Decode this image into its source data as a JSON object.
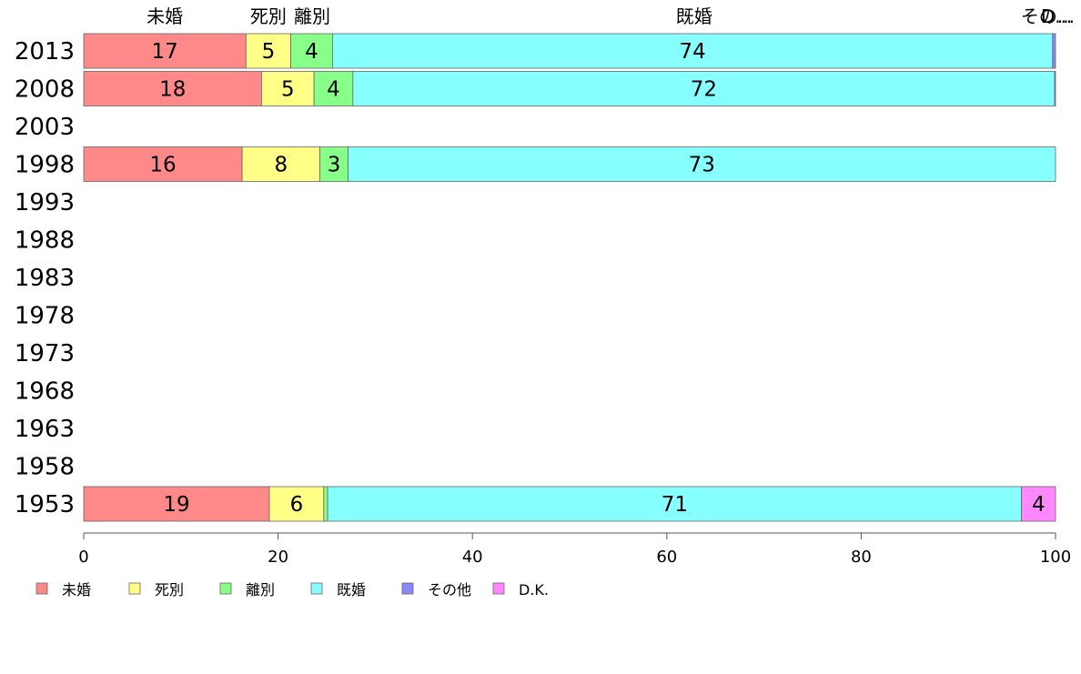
{
  "colors": {
    "未婚": "#ff8888",
    "死別": "#ffff88",
    "離別": "#88ff88",
    "既婚": "#88ffff",
    "その他": "#8888ff",
    "D.K.": "#ff88ff"
  },
  "chart_data": {
    "type": "bar",
    "orientation": "horizontal",
    "stacked": true,
    "categories": [
      "2013",
      "2008",
      "2003",
      "1998",
      "1993",
      "1988",
      "1983",
      "1978",
      "1973",
      "1968",
      "1963",
      "1958",
      "1953"
    ],
    "series": [
      {
        "name": "未婚",
        "values": [
          16.7,
          18.3,
          null,
          16.3,
          null,
          null,
          null,
          null,
          null,
          null,
          null,
          null,
          19.1
        ]
      },
      {
        "name": "死別",
        "values": [
          4.6,
          5.4,
          null,
          8.0,
          null,
          null,
          null,
          null,
          null,
          null,
          null,
          null,
          5.6
        ]
      },
      {
        "name": "離別",
        "values": [
          4.3,
          4.0,
          null,
          2.9,
          null,
          null,
          null,
          null,
          null,
          null,
          null,
          null,
          0.4
        ]
      },
      {
        "name": "既婚",
        "values": [
          74.1,
          72.2,
          null,
          72.8,
          null,
          null,
          null,
          null,
          null,
          null,
          null,
          null,
          71.4
        ]
      },
      {
        "name": "その他",
        "values": [
          0.3,
          0.1,
          null,
          0.0,
          null,
          null,
          null,
          null,
          null,
          null,
          null,
          null,
          0.0
        ]
      },
      {
        "name": "D.K.",
        "values": [
          0.0,
          0.0,
          null,
          0.0,
          null,
          null,
          null,
          null,
          null,
          null,
          null,
          null,
          3.5
        ]
      }
    ],
    "bar_labels": [
      [
        "17",
        "5",
        "4",
        "74",
        "",
        ""
      ],
      [
        "18",
        "5",
        "4",
        "72",
        "",
        ""
      ],
      [
        "",
        "",
        "",
        "",
        "",
        ""
      ],
      [
        "16",
        "8",
        "3",
        "73",
        "",
        ""
      ],
      [
        "",
        "",
        "",
        "",
        "",
        ""
      ],
      [
        "",
        "",
        "",
        "",
        "",
        ""
      ],
      [
        "",
        "",
        "",
        "",
        "",
        ""
      ],
      [
        "",
        "",
        "",
        "",
        "",
        ""
      ],
      [
        "",
        "",
        "",
        "",
        "",
        ""
      ],
      [
        "",
        "",
        "",
        "",
        "",
        ""
      ],
      [
        "",
        "",
        "",
        "",
        "",
        ""
      ],
      [
        "",
        "",
        "",
        "",
        "",
        ""
      ],
      [
        "19",
        "6",
        "",
        "71",
        "",
        "4"
      ]
    ],
    "top_labels": [
      {
        "text": "未婚",
        "x": 8.35
      },
      {
        "text": "死別",
        "x": 19.0
      },
      {
        "text": "離別",
        "x": 23.5
      },
      {
        "text": "既婚",
        "x": 62.8
      },
      {
        "text": "その...",
        "x": 99.2
      },
      {
        "text": "D...",
        "x": 100.1
      }
    ],
    "xlim": [
      0,
      100
    ],
    "x_ticks": [
      "0",
      "20",
      "40",
      "60",
      "80",
      "100"
    ],
    "legend": {
      "position": "bottom-left",
      "entries": [
        "未婚",
        "死別",
        "離別",
        "既婚",
        "その他",
        "D.K."
      ]
    },
    "grid": false
  }
}
